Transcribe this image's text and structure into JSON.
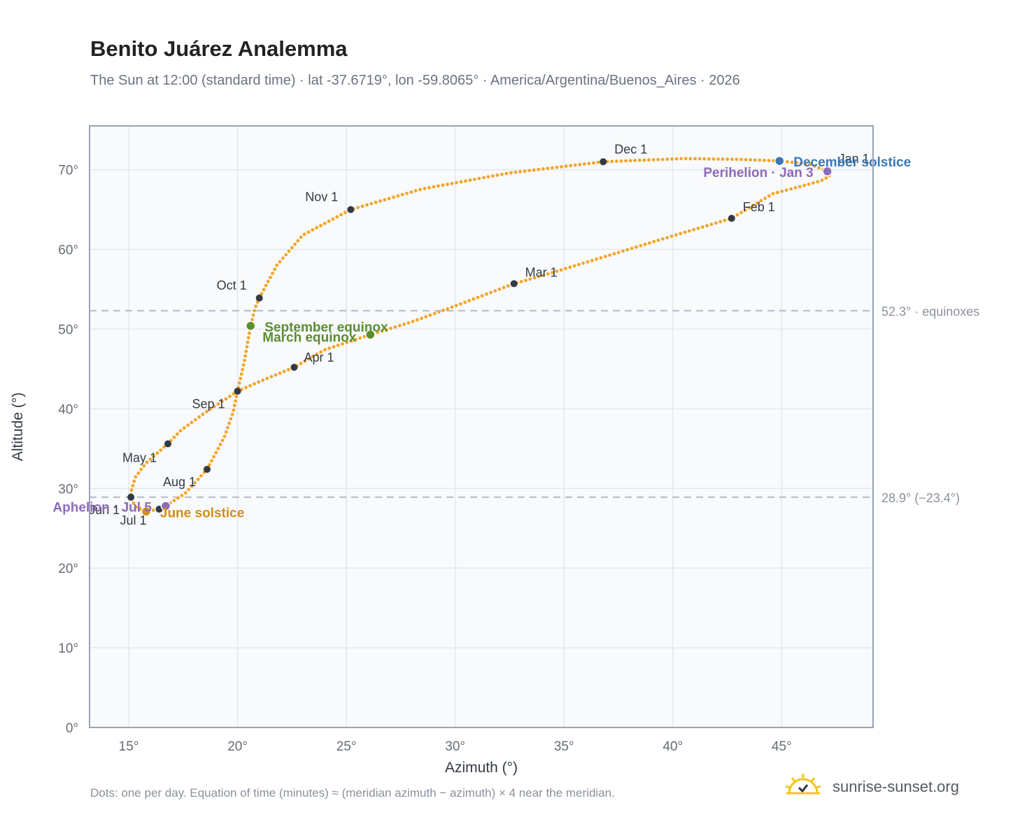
{
  "title": "Benito Juárez Analemma",
  "subtitle": "The Sun at 12:00 (standard time) · lat -37.6719°, lon -59.8065° · America/Argentina/Buenos_Aires · 2026",
  "footnote": "Dots: one per day. Equation of time (minutes) ≈ (meridian azimuth − azimuth) × 4 near the meridian.",
  "brand": "sunrise-sunset.org",
  "chart_data": {
    "type": "scatter",
    "xlabel": "Azimuth (°)",
    "ylabel": "Altitude (°)",
    "xlim": [
      13.2,
      49.2
    ],
    "ylim": [
      0,
      75.5
    ],
    "xticks": [
      15,
      20,
      25,
      30,
      35,
      40,
      45
    ],
    "yticks": [
      0,
      10,
      20,
      30,
      40,
      50,
      60,
      70
    ],
    "tick_suffix": "°",
    "grid": true,
    "colors": {
      "curve": "#f2a52a",
      "month_marker": "#333a45",
      "equinox": "#5a8f2f",
      "december_solstice": "#3a78b7",
      "june_solstice": "#d18e1a",
      "perihelion": "#8e6bb8",
      "refline": "#b5bac4",
      "plot_bg": "#f8fafc",
      "frame": "#9aa3b2"
    },
    "reference_lines": [
      {
        "y": 52.3,
        "label": "52.3° · equinoxes"
      },
      {
        "y": 28.9,
        "label": "28.9° (−23.4°)"
      }
    ],
    "month_markers": [
      {
        "label": "Jan 1",
        "x": 47.1,
        "y": 69.8
      },
      {
        "label": "Feb 1",
        "x": 42.7,
        "y": 63.9
      },
      {
        "label": "Mar 1",
        "x": 32.7,
        "y": 55.7
      },
      {
        "label": "Apr 1",
        "x": 22.6,
        "y": 45.2
      },
      {
        "label": "May 1",
        "x": 16.8,
        "y": 35.6
      },
      {
        "label": "Jun 1",
        "x": 15.1,
        "y": 28.9
      },
      {
        "label": "Jul 1",
        "x": 16.4,
        "y": 27.4
      },
      {
        "label": "Aug 1",
        "x": 18.6,
        "y": 32.4
      },
      {
        "label": "Sep 1",
        "x": 20.0,
        "y": 42.2
      },
      {
        "label": "Oct 1",
        "x": 21.0,
        "y": 53.9
      },
      {
        "label": "Nov 1",
        "x": 25.2,
        "y": 65.0
      },
      {
        "label": "Dec 1",
        "x": 36.8,
        "y": 71.0
      }
    ],
    "events": [
      {
        "label": "December solstice",
        "x": 44.9,
        "y": 71.1,
        "kind": "december_solstice"
      },
      {
        "label": "Perihelion · Jan 3",
        "x": 47.1,
        "y": 69.8,
        "kind": "perihelion"
      },
      {
        "label": "September equinox",
        "x": 20.6,
        "y": 50.4,
        "kind": "equinox"
      },
      {
        "label": "March equinox",
        "x": 26.1,
        "y": 49.3,
        "kind": "equinox"
      },
      {
        "label": "Aphelion · Jul 5",
        "x": 16.7,
        "y": 27.8,
        "kind": "perihelion"
      },
      {
        "label": "June solstice",
        "x": 15.8,
        "y": 27.1,
        "kind": "june_solstice"
      }
    ],
    "series": [
      {
        "points": [
          [
            47.1,
            69.8
          ],
          [
            47.2,
            69.2
          ],
          [
            46.8,
            68.6
          ],
          [
            46.0,
            68.0
          ],
          [
            44.6,
            67.0
          ],
          [
            42.7,
            63.9
          ],
          [
            40.0,
            61.7
          ],
          [
            37.0,
            59.2
          ],
          [
            34.0,
            56.7
          ],
          [
            32.7,
            55.7
          ],
          [
            30.0,
            52.9
          ],
          [
            28.0,
            50.9
          ],
          [
            26.1,
            49.3
          ],
          [
            24.0,
            47.4
          ],
          [
            22.6,
            45.2
          ],
          [
            21.0,
            43.4
          ],
          [
            20.0,
            42.2
          ],
          [
            18.5,
            39.5
          ],
          [
            17.4,
            37.3
          ],
          [
            16.8,
            35.6
          ],
          [
            15.8,
            33.2
          ],
          [
            15.3,
            31.4
          ],
          [
            15.1,
            29.5
          ],
          [
            15.1,
            28.9
          ],
          [
            15.3,
            27.7
          ],
          [
            15.8,
            27.1
          ],
          [
            16.4,
            27.4
          ],
          [
            16.7,
            27.8
          ],
          [
            17.6,
            29.4
          ],
          [
            18.6,
            32.4
          ],
          [
            19.4,
            36.5
          ],
          [
            19.8,
            39.6
          ],
          [
            20.0,
            42.2
          ],
          [
            20.3,
            45.8
          ],
          [
            20.6,
            50.4
          ],
          [
            20.8,
            52.6
          ],
          [
            21.0,
            53.9
          ],
          [
            21.8,
            58.0
          ],
          [
            23.0,
            61.8
          ],
          [
            25.2,
            65.0
          ],
          [
            28.5,
            67.6
          ],
          [
            32.5,
            69.6
          ],
          [
            36.8,
            71.0
          ],
          [
            40.5,
            71.4
          ],
          [
            43.0,
            71.3
          ],
          [
            44.9,
            71.1
          ],
          [
            46.3,
            70.7
          ],
          [
            47.1,
            69.8
          ]
        ]
      }
    ]
  }
}
